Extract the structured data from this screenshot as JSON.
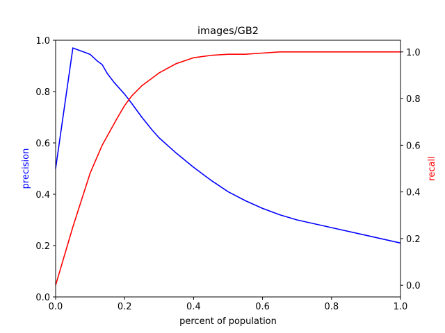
{
  "chart_data": {
    "type": "line",
    "title": "images/GB2",
    "xlabel": "percent of population",
    "ylabel_left": "precision",
    "ylabel_right": "recall",
    "xlim": [
      0,
      1
    ],
    "ylim_left": [
      0,
      1
    ],
    "ylim_right": [
      -0.05,
      1.05
    ],
    "x_ticks": [
      "0.0",
      "0.2",
      "0.4",
      "0.6",
      "0.8",
      "1.0"
    ],
    "y_left_ticks": [
      "0.0",
      "0.2",
      "0.4",
      "0.6",
      "0.8",
      "1.0"
    ],
    "y_right_ticks": [
      "0.0",
      "0.2",
      "0.4",
      "0.6",
      "0.8",
      "1.0"
    ],
    "grid": false,
    "series": [
      {
        "name": "precision",
        "axis": "left",
        "color": "#0000ff",
        "x": [
          0.0,
          0.05,
          0.06,
          0.08,
          0.1,
          0.12,
          0.135,
          0.15,
          0.17,
          0.2,
          0.22,
          0.25,
          0.28,
          0.3,
          0.35,
          0.4,
          0.45,
          0.5,
          0.55,
          0.6,
          0.65,
          0.7,
          0.8,
          0.9,
          1.0
        ],
        "y": [
          0.5,
          0.97,
          0.965,
          0.955,
          0.945,
          0.92,
          0.905,
          0.87,
          0.835,
          0.79,
          0.755,
          0.7,
          0.65,
          0.62,
          0.56,
          0.505,
          0.455,
          0.41,
          0.375,
          0.345,
          0.32,
          0.3,
          0.27,
          0.24,
          0.21
        ]
      },
      {
        "name": "recall",
        "axis": "right",
        "color": "#ff0000",
        "x": [
          0.0,
          0.05,
          0.1,
          0.135,
          0.15,
          0.18,
          0.2,
          0.22,
          0.25,
          0.3,
          0.35,
          0.4,
          0.45,
          0.5,
          0.55,
          0.6,
          0.65,
          0.7,
          0.8,
          0.9,
          1.0
        ],
        "y": [
          0.0,
          0.25,
          0.48,
          0.6,
          0.64,
          0.72,
          0.77,
          0.81,
          0.855,
          0.91,
          0.95,
          0.975,
          0.985,
          0.99,
          0.99,
          0.995,
          1.0,
          1.0,
          1.0,
          1.0,
          1.0
        ]
      }
    ]
  }
}
